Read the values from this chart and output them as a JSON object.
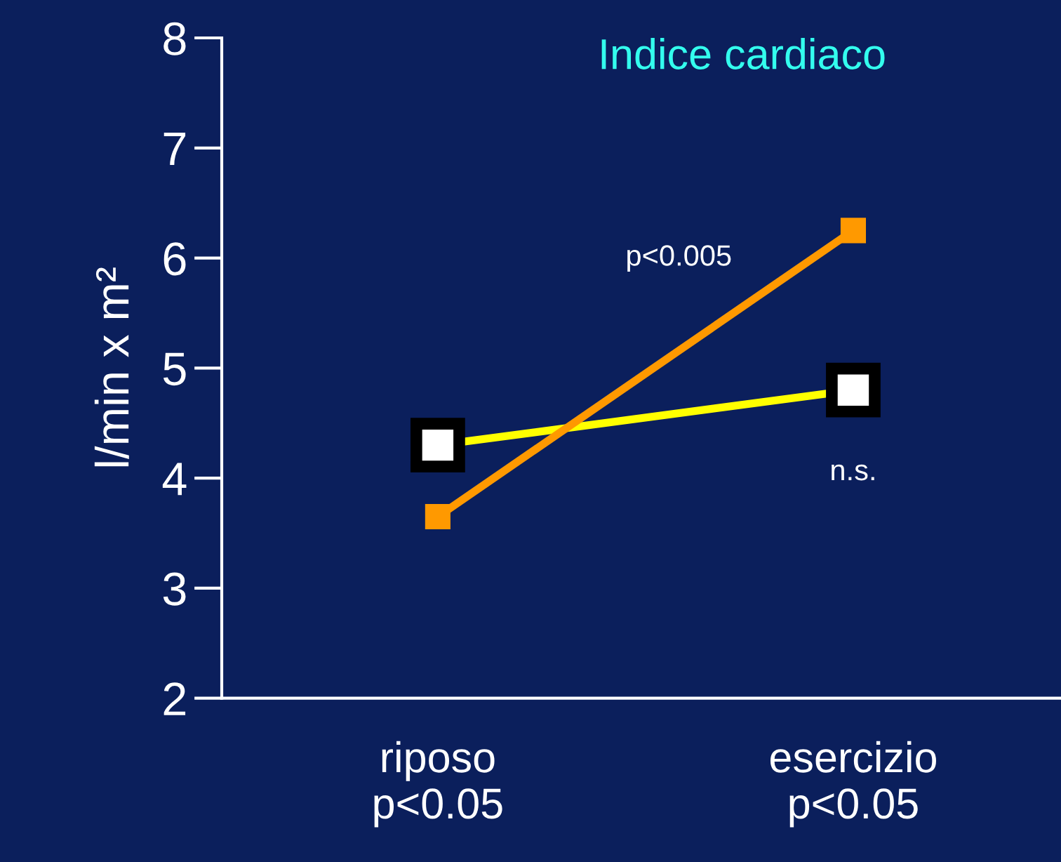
{
  "chart_data": {
    "type": "line",
    "title": "Indice cardiaco",
    "ylabel": "l/min x m²",
    "categories": [
      "riposo\np<0.05",
      "esercizio\np<0.05"
    ],
    "series": [
      {
        "color": "#ffff00",
        "values": [
          4.3,
          4.8
        ]
      },
      {
        "color": "#ff9900",
        "values": [
          3.65,
          6.25
        ]
      }
    ],
    "annotations": [
      "p<0.005",
      "n.s."
    ],
    "ylim": [
      2,
      8
    ],
    "yticks": [
      2,
      3,
      4,
      5,
      6,
      7,
      8
    ],
    "grid": false,
    "legend": false,
    "marker": "square",
    "line_style": "solid"
  }
}
